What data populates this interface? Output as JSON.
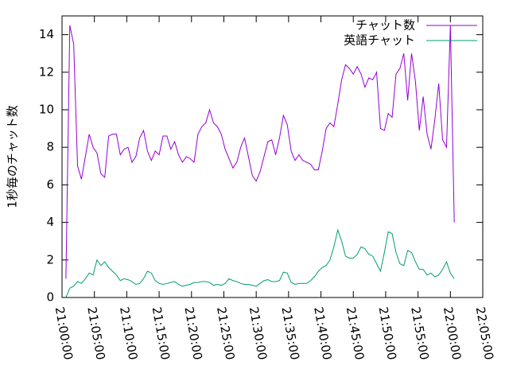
{
  "chart_data": {
    "type": "line",
    "ylabel": "1秒毎のチャット数",
    "x": [
      "21:00:36",
      "21:01:12",
      "21:01:48",
      "21:02:24",
      "21:03:00",
      "21:03:36",
      "21:04:12",
      "21:04:48",
      "21:05:24",
      "21:06:00",
      "21:06:36",
      "21:07:12",
      "21:07:48",
      "21:08:24",
      "21:09:00",
      "21:09:36",
      "21:10:12",
      "21:10:48",
      "21:11:24",
      "21:12:00",
      "21:12:36",
      "21:13:12",
      "21:13:48",
      "21:14:24",
      "21:15:00",
      "21:15:36",
      "21:16:12",
      "21:16:48",
      "21:17:24",
      "21:18:00",
      "21:18:36",
      "21:19:12",
      "21:19:48",
      "21:20:24",
      "21:21:00",
      "21:21:36",
      "21:22:12",
      "21:22:48",
      "21:23:24",
      "21:24:00",
      "21:24:36",
      "21:25:12",
      "21:25:48",
      "21:26:24",
      "21:27:00",
      "21:27:36",
      "21:28:12",
      "21:28:48",
      "21:29:24",
      "21:30:00",
      "21:30:36",
      "21:31:12",
      "21:31:48",
      "21:32:24",
      "21:33:00",
      "21:33:36",
      "21:34:12",
      "21:34:48",
      "21:35:24",
      "21:36:00",
      "21:36:36",
      "21:37:12",
      "21:37:48",
      "21:38:24",
      "21:39:00",
      "21:39:36",
      "21:40:12",
      "21:40:48",
      "21:41:24",
      "21:42:00",
      "21:42:36",
      "21:43:12",
      "21:43:48",
      "21:44:24",
      "21:45:00",
      "21:45:36",
      "21:46:12",
      "21:46:48",
      "21:47:24",
      "21:48:00",
      "21:48:36",
      "21:49:12",
      "21:49:48",
      "21:50:24",
      "21:51:00",
      "21:51:36",
      "21:52:12",
      "21:52:48",
      "21:53:24",
      "21:54:00",
      "21:54:36",
      "21:55:12",
      "21:55:48",
      "21:56:24",
      "21:57:00",
      "21:57:36",
      "21:58:12",
      "21:58:48",
      "21:59:24",
      "22:00:00",
      "22:00:36"
    ],
    "series": [
      {
        "name": "チャット数",
        "color": "#9400d3",
        "values": [
          1.0,
          14.5,
          13.5,
          7.0,
          6.3,
          7.5,
          8.7,
          8.0,
          7.7,
          6.6,
          6.4,
          8.6,
          8.7,
          8.7,
          7.6,
          7.9,
          8.0,
          7.2,
          7.5,
          8.5,
          8.9,
          7.8,
          7.3,
          7.8,
          7.6,
          8.6,
          8.6,
          7.9,
          8.3,
          7.6,
          7.2,
          7.5,
          7.4,
          7.2,
          8.7,
          9.1,
          9.3,
          10.0,
          9.3,
          9.1,
          8.7,
          7.9,
          7.4,
          6.9,
          7.2,
          8.0,
          8.5,
          7.5,
          6.5,
          6.2,
          6.7,
          7.5,
          8.3,
          8.4,
          7.6,
          8.5,
          9.7,
          9.2,
          7.8,
          7.3,
          7.6,
          7.3,
          7.2,
          7.1,
          6.8,
          6.8,
          7.8,
          9.0,
          9.3,
          9.1,
          10.3,
          11.6,
          12.4,
          12.2,
          11.9,
          12.3,
          11.9,
          11.2,
          11.7,
          11.6,
          12.0,
          9.0,
          8.9,
          9.8,
          9.6,
          11.9,
          12.2,
          13.0,
          10.5,
          13.0,
          11.5,
          8.9,
          10.7,
          8.7,
          7.9,
          9.5,
          11.4,
          8.4,
          8.0,
          14.5,
          4.0
        ]
      },
      {
        "name": "英語チャット",
        "color": "#009e73",
        "values": [
          0.0,
          0.5,
          0.6,
          0.85,
          0.75,
          1.0,
          1.3,
          1.2,
          2.0,
          1.7,
          1.9,
          1.6,
          1.4,
          1.2,
          0.9,
          1.0,
          0.95,
          0.85,
          0.7,
          0.75,
          1.0,
          1.4,
          1.3,
          0.9,
          0.75,
          0.7,
          0.75,
          0.8,
          0.85,
          0.7,
          0.6,
          0.65,
          0.7,
          0.8,
          0.8,
          0.85,
          0.85,
          0.8,
          0.65,
          0.7,
          0.65,
          0.75,
          1.0,
          0.9,
          0.85,
          0.75,
          0.7,
          0.7,
          0.65,
          0.6,
          0.75,
          0.9,
          0.95,
          0.85,
          0.85,
          0.9,
          1.35,
          1.3,
          0.8,
          0.7,
          0.75,
          0.75,
          0.75,
          0.9,
          1.1,
          1.4,
          1.6,
          1.7,
          2.0,
          2.7,
          3.6,
          3.0,
          2.2,
          2.1,
          2.1,
          2.3,
          2.7,
          2.6,
          2.3,
          2.2,
          1.8,
          1.4,
          2.4,
          3.5,
          3.4,
          2.4,
          1.8,
          1.7,
          2.5,
          2.4,
          1.9,
          1.5,
          1.5,
          1.2,
          1.3,
          1.1,
          1.2,
          1.5,
          1.9,
          1.3,
          1.0
        ]
      }
    ],
    "xlim": [
      "21:00:00",
      "22:05:00"
    ],
    "xticks": [
      "21:00:00",
      "21:05:00",
      "21:10:00",
      "21:15:00",
      "21:20:00",
      "21:25:00",
      "21:30:00",
      "21:35:00",
      "21:40:00",
      "21:45:00",
      "21:50:00",
      "21:55:00",
      "22:00:00",
      "22:05:00"
    ],
    "ylim": [
      0,
      15
    ],
    "yticks": [
      0,
      2,
      4,
      6,
      8,
      10,
      12,
      14
    ],
    "legend": "top right"
  }
}
